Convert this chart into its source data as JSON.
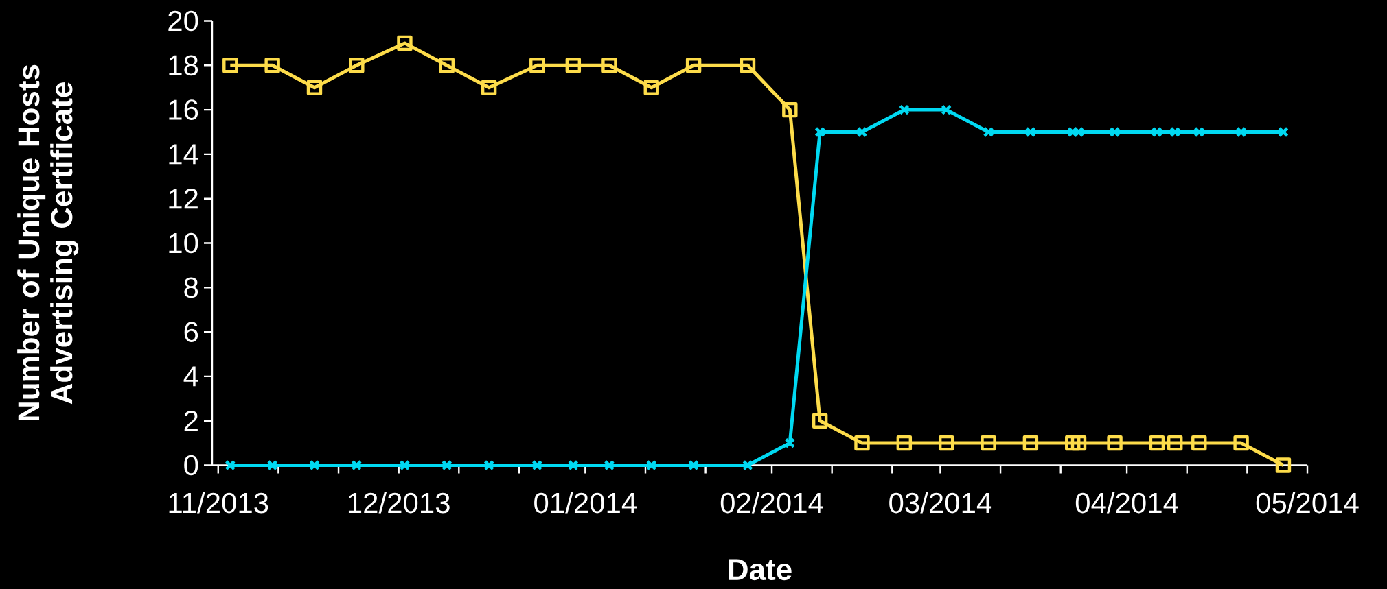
{
  "chart_data": {
    "type": "line",
    "xlabel": "Date",
    "ylabel": "Number of Unique Hosts Advertising Certificate",
    "x": [
      "2013-11-03",
      "2013-11-10",
      "2013-11-17",
      "2013-11-24",
      "2013-12-02",
      "2013-12-09",
      "2013-12-16",
      "2013-12-24",
      "2013-12-30",
      "2014-01-05",
      "2014-01-12",
      "2014-01-19",
      "2014-01-28",
      "2014-02-04",
      "2014-02-09",
      "2014-02-16",
      "2014-02-23",
      "2014-03-02",
      "2014-03-09",
      "2014-03-16",
      "2014-03-23",
      "2014-03-24",
      "2014-03-30",
      "2014-04-06",
      "2014-04-09",
      "2014-04-13",
      "2014-04-20",
      "2014-04-27"
    ],
    "series": [
      {
        "color": "#fddc4a",
        "marker": "square",
        "values": [
          18,
          18,
          17,
          18,
          19,
          18,
          17,
          18,
          18,
          18,
          17,
          18,
          18,
          16,
          2,
          1,
          1,
          1,
          1,
          1,
          1,
          1,
          1,
          1,
          1,
          1,
          1,
          0
        ]
      },
      {
        "color": "#00d9f2",
        "marker": "cross",
        "values": [
          0,
          0,
          0,
          0,
          0,
          0,
          0,
          0,
          0,
          0,
          0,
          0,
          0,
          1,
          15,
          15,
          16,
          16,
          15,
          15,
          15,
          15,
          15,
          15,
          15,
          15,
          15,
          15
        ]
      }
    ],
    "xlim": [
      "2013-10-31",
      "2014-05-01"
    ],
    "xticks": [
      {
        "value": "2013-11-01",
        "label": "11/2013"
      },
      {
        "value": "2013-11-11",
        "label": null
      },
      {
        "value": "2013-11-21",
        "label": null
      },
      {
        "value": "2013-12-01",
        "label": "12/2013"
      },
      {
        "value": "2013-12-11",
        "label": null
      },
      {
        "value": "2013-12-21",
        "label": null
      },
      {
        "value": "2014-01-01",
        "label": "01/2014"
      },
      {
        "value": "2014-01-11",
        "label": null
      },
      {
        "value": "2014-01-21",
        "label": null
      },
      {
        "value": "2014-02-01",
        "label": "02/2014"
      },
      {
        "value": "2014-02-11",
        "label": null
      },
      {
        "value": "2014-02-21",
        "label": null
      },
      {
        "value": "2014-03-01",
        "label": "03/2014"
      },
      {
        "value": "2014-03-11",
        "label": null
      },
      {
        "value": "2014-03-21",
        "label": null
      },
      {
        "value": "2014-04-01",
        "label": "04/2014"
      },
      {
        "value": "2014-04-11",
        "label": null
      },
      {
        "value": "2014-04-21",
        "label": null
      },
      {
        "value": "2014-05-01",
        "label": "05/2014"
      }
    ],
    "ylim": [
      0,
      20
    ],
    "yticks": [
      0,
      2,
      4,
      6,
      8,
      10,
      12,
      14,
      16,
      18,
      20
    ],
    "line_style": "solid"
  }
}
